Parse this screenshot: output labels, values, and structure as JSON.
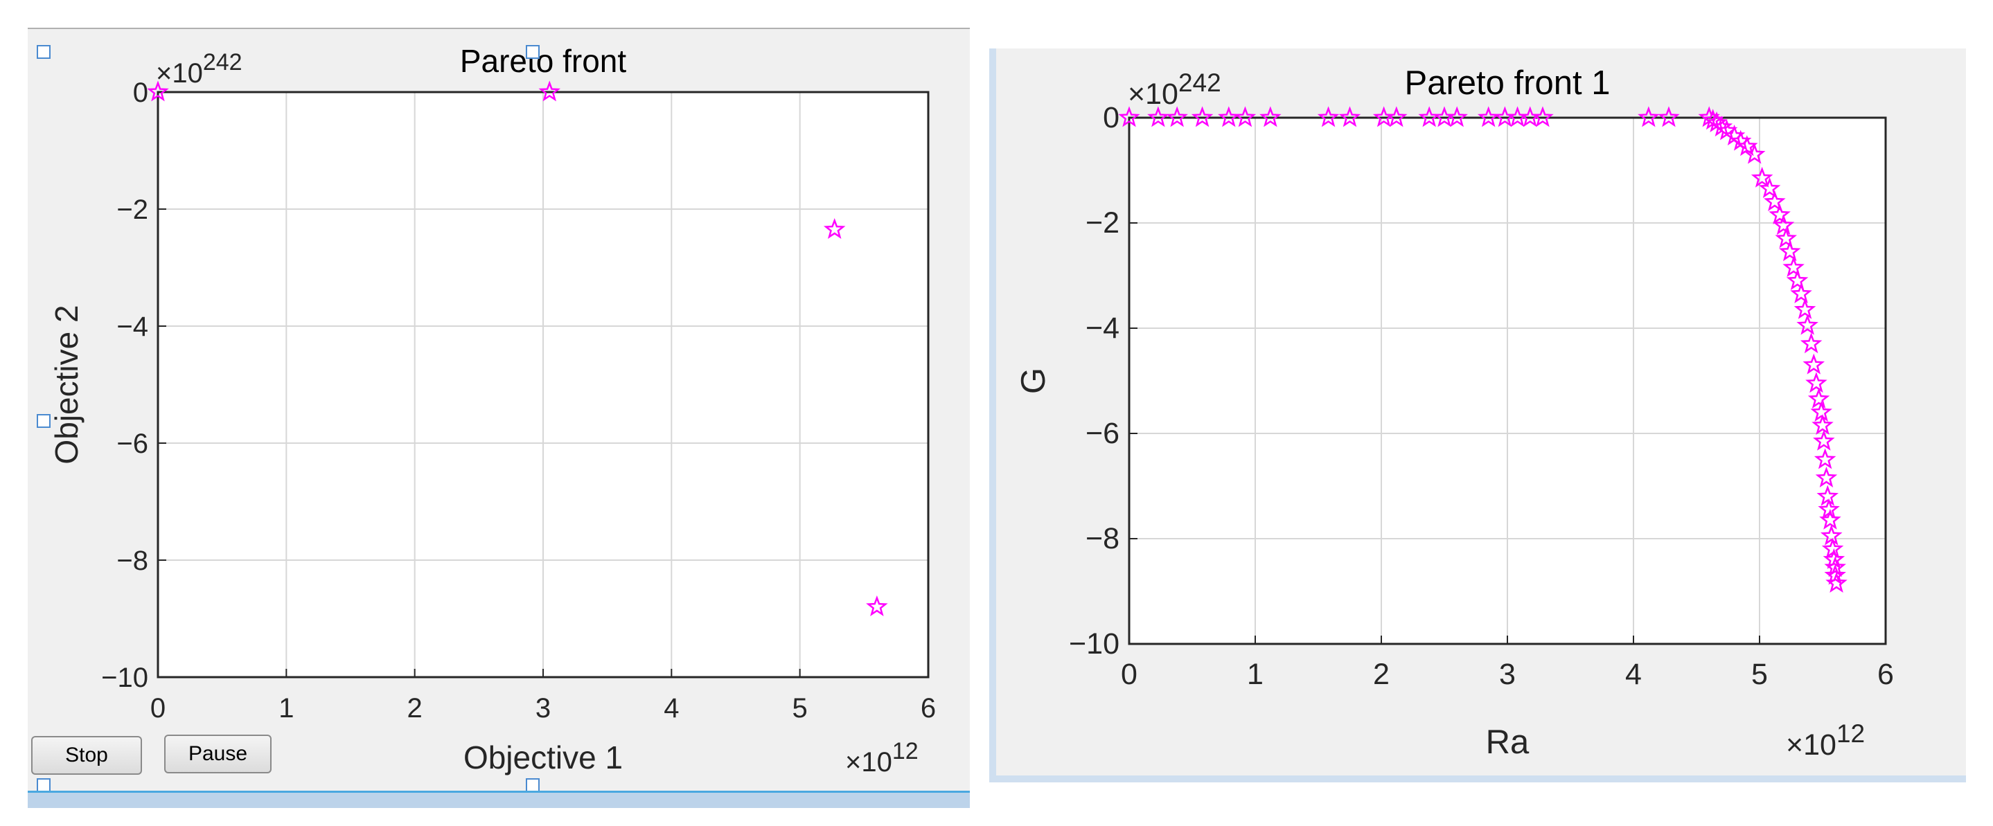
{
  "chart_data": [
    {
      "type": "scatter",
      "title": "Pareto front",
      "xlabel": "Objective 1",
      "ylabel": "Objective 2",
      "x_exponent_label": "10",
      "x_exponent_power": "12",
      "y_exponent_label": "10",
      "y_exponent_power": "242",
      "xlim": [
        0,
        6
      ],
      "ylim": [
        -10,
        0
      ],
      "xticks": [
        0,
        1,
        2,
        3,
        4,
        5,
        6
      ],
      "yticks": [
        0,
        -2,
        -4,
        -6,
        -8,
        -10
      ],
      "xtick_labels": [
        "0",
        "1",
        "2",
        "3",
        "4",
        "5",
        "6"
      ],
      "ytick_labels": [
        "0",
        "−2",
        "−4",
        "−6",
        "−8",
        "−10"
      ],
      "grid": true,
      "marker": "star",
      "color": "#ff00ff",
      "x": [
        0.0,
        3.05,
        5.27,
        5.6
      ],
      "y": [
        0.0,
        0.0,
        -2.35,
        -8.8
      ]
    },
    {
      "type": "scatter",
      "title": "Pareto front 1",
      "xlabel": "Ra",
      "ylabel": "G",
      "x_exponent_label": "10",
      "x_exponent_power": "12",
      "y_exponent_label": "10",
      "y_exponent_power": "242",
      "xlim": [
        0,
        6
      ],
      "ylim": [
        -10,
        0
      ],
      "xticks": [
        0,
        1,
        2,
        3,
        4,
        5,
        6
      ],
      "yticks": [
        0,
        -2,
        -4,
        -6,
        -8,
        -10
      ],
      "xtick_labels": [
        "0",
        "1",
        "2",
        "3",
        "4",
        "5",
        "6"
      ],
      "ytick_labels": [
        "0",
        "−2",
        "−4",
        "−6",
        "−8",
        "−10"
      ],
      "grid": true,
      "marker": "star",
      "color": "#ff00ff",
      "x": [
        0.0,
        0.23,
        0.38,
        0.58,
        0.79,
        0.92,
        1.12,
        1.58,
        1.75,
        2.02,
        2.12,
        2.38,
        2.5,
        2.6,
        2.85,
        2.98,
        3.08,
        3.18,
        3.28,
        4.12,
        4.28,
        4.6,
        4.63,
        4.66,
        4.7,
        4.74,
        4.8,
        4.85,
        4.9,
        4.96,
        5.02,
        5.08,
        5.12,
        5.16,
        5.19,
        5.21,
        5.24,
        5.27,
        5.3,
        5.33,
        5.36,
        5.38,
        5.41,
        5.43,
        5.45,
        5.47,
        5.49,
        5.5,
        5.51,
        5.52,
        5.53,
        5.54,
        5.55,
        5.56,
        5.57,
        5.58,
        5.59,
        5.6,
        5.6,
        5.61
      ],
      "y": [
        0.0,
        0.0,
        0.0,
        0.0,
        0.0,
        0.0,
        0.0,
        0.0,
        0.0,
        0.0,
        0.0,
        0.0,
        0.0,
        0.0,
        0.0,
        0.0,
        0.0,
        0.0,
        0.0,
        0.0,
        0.0,
        0.0,
        -0.05,
        -0.1,
        -0.18,
        -0.25,
        -0.35,
        -0.45,
        -0.55,
        -0.7,
        -1.15,
        -1.35,
        -1.6,
        -1.85,
        -2.05,
        -2.3,
        -2.55,
        -2.85,
        -3.1,
        -3.35,
        -3.65,
        -3.95,
        -4.3,
        -4.7,
        -5.05,
        -5.35,
        -5.6,
        -5.85,
        -6.15,
        -6.5,
        -6.85,
        -7.2,
        -7.45,
        -7.65,
        -7.95,
        -8.2,
        -8.4,
        -8.55,
        -8.7,
        -8.85
      ]
    }
  ],
  "controls": {
    "stop_label": "Stop",
    "pause_label": "Pause"
  },
  "colors": {
    "panel_bg": "#f0f0f0",
    "axes_bg": "#ffffff",
    "marker": "#ff00ff",
    "grid": "#d7d7d7",
    "frame_strip": "#bcd3ea"
  }
}
